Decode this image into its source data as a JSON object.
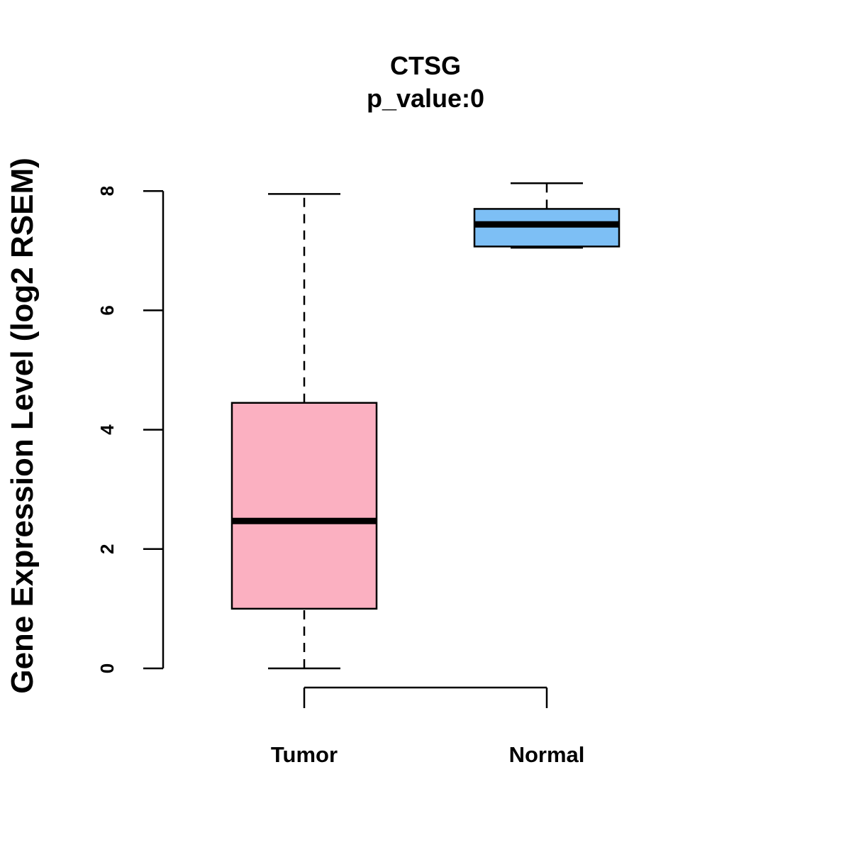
{
  "chart_data": {
    "type": "box",
    "title": "CTSG",
    "subtitle": "p_value:0",
    "ylabel": "Gene Expression Level (log2 RSEM)",
    "xlabel": "",
    "ylim": [
      0,
      8.2
    ],
    "yticks": [
      0,
      2,
      4,
      6,
      8
    ],
    "categories": [
      "Tumor",
      "Normal"
    ],
    "boxes": [
      {
        "category": "Tumor",
        "min": 0.0,
        "q1": 1.0,
        "median": 2.47,
        "q3": 4.45,
        "max": 7.95,
        "color": "#FBB0C1"
      },
      {
        "category": "Normal",
        "min": 7.05,
        "q1": 7.07,
        "median": 7.44,
        "q3": 7.7,
        "max": 8.13,
        "color": "#7DBFF5"
      }
    ],
    "grid": false,
    "legend": "none"
  }
}
